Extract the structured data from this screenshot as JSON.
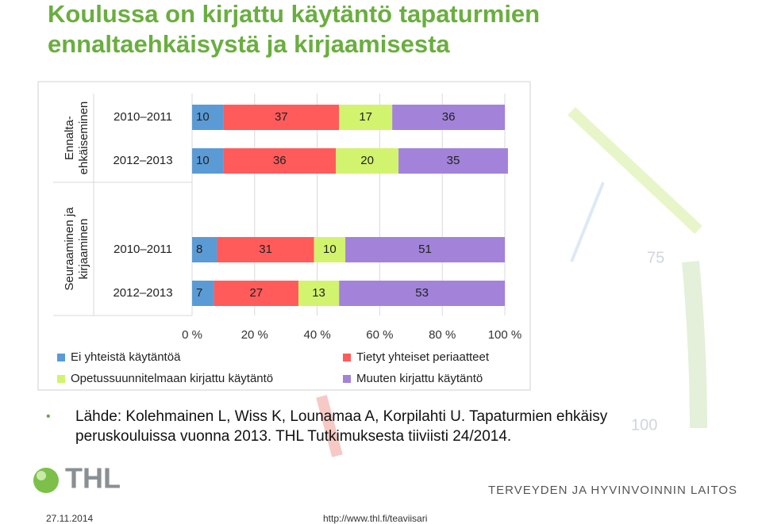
{
  "title": [
    "Koulussa on kirjattu käytäntö tapaturmien",
    "ennaltaehkäisystä ja kirjaamisesta"
  ],
  "chart_data": {
    "type": "stacked-bar-horizontal",
    "group_labels": [
      [
        "Ennalta-",
        "ehkäiseminen"
      ],
      [
        "Seuraaminen ja",
        "kirjaaminen"
      ]
    ],
    "categories": [
      "2010–2011",
      "2012–2013",
      "2010–2011",
      "2012–2013"
    ],
    "series": [
      {
        "name": "Ei yhteistä käytäntöä",
        "color": "#5b9bd5",
        "values": [
          10,
          10,
          8,
          7
        ]
      },
      {
        "name": "Tietyt yhteiset periaatteet",
        "color": "#ff5b5b",
        "values": [
          37,
          36,
          31,
          27
        ]
      },
      {
        "name": "Opetussuunnitelmaan kirjattu käytäntö",
        "color": "#d2f36e",
        "values": [
          17,
          20,
          10,
          13
        ]
      },
      {
        "name": "Muuten kirjattu käytäntö",
        "color": "#a283d9",
        "values": [
          36,
          35,
          51,
          53
        ]
      }
    ],
    "xlim": [
      0,
      100
    ],
    "xticks": [
      {
        "value": 0,
        "label": "0 %"
      },
      {
        "value": 20,
        "label": "20 %"
      },
      {
        "value": 40,
        "label": "40 %"
      },
      {
        "value": 60,
        "label": "60 %"
      },
      {
        "value": 80,
        "label": "80 %"
      },
      {
        "value": 100,
        "label": "100 %"
      }
    ],
    "grid": true
  },
  "source": "Lähde: Kolehmainen L, Wiss K, Lounamaa A, Korpilahti U. Tapaturmien ehkäisy peruskouluissa vuonna 2013. THL Tutkimuksesta tiiviisti 24/2014.",
  "background_labels": [
    "75",
    "100"
  ],
  "logo": "THL",
  "organization": "TERVEYDEN JA HYVINVOINNIN LAITOS",
  "footer": {
    "date": "27.11.2014",
    "url": "http://www.thl.fi/teaviisari"
  }
}
